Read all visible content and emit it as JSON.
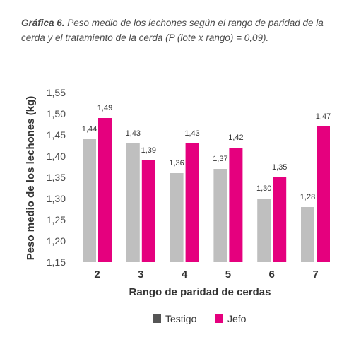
{
  "caption": {
    "label": "Gráfica 6.",
    "text": " Peso medio de los lechones según el rango de paridad de la cerda y el tratamiento de la cerda (P (lote x rango) = 0,09)."
  },
  "chart_data": {
    "type": "bar",
    "categories": [
      "2",
      "3",
      "4",
      "5",
      "6",
      "7"
    ],
    "series": [
      {
        "name": "Testigo",
        "color": "#bfbfbf",
        "values": [
          1.44,
          1.43,
          1.36,
          1.37,
          1.3,
          1.28
        ],
        "labels": [
          "1,44",
          "1,43",
          "1,36",
          "1,37",
          "1,30",
          "1,28"
        ]
      },
      {
        "name": "Jefo",
        "color": "#e5007e",
        "values": [
          1.49,
          1.39,
          1.43,
          1.42,
          1.35,
          1.47
        ],
        "labels": [
          "1,49",
          "1,39",
          "1,43",
          "1,42",
          "1,35",
          "1,47"
        ]
      }
    ],
    "xlabel": "Rango de paridad de cerdas",
    "ylabel": "Peso medio de los lechones (kg)",
    "ylim": [
      1.15,
      1.55
    ],
    "yticks": [
      1.15,
      1.2,
      1.25,
      1.3,
      1.35,
      1.4,
      1.45,
      1.5,
      1.55
    ],
    "ytick_labels": [
      "1,15",
      "1,20",
      "1,25",
      "1,30",
      "1,35",
      "1,40",
      "1,45",
      "1,50",
      "1,55"
    ],
    "legend_position": "bottom",
    "grid": false,
    "legend_marker_color": "#555555"
  }
}
